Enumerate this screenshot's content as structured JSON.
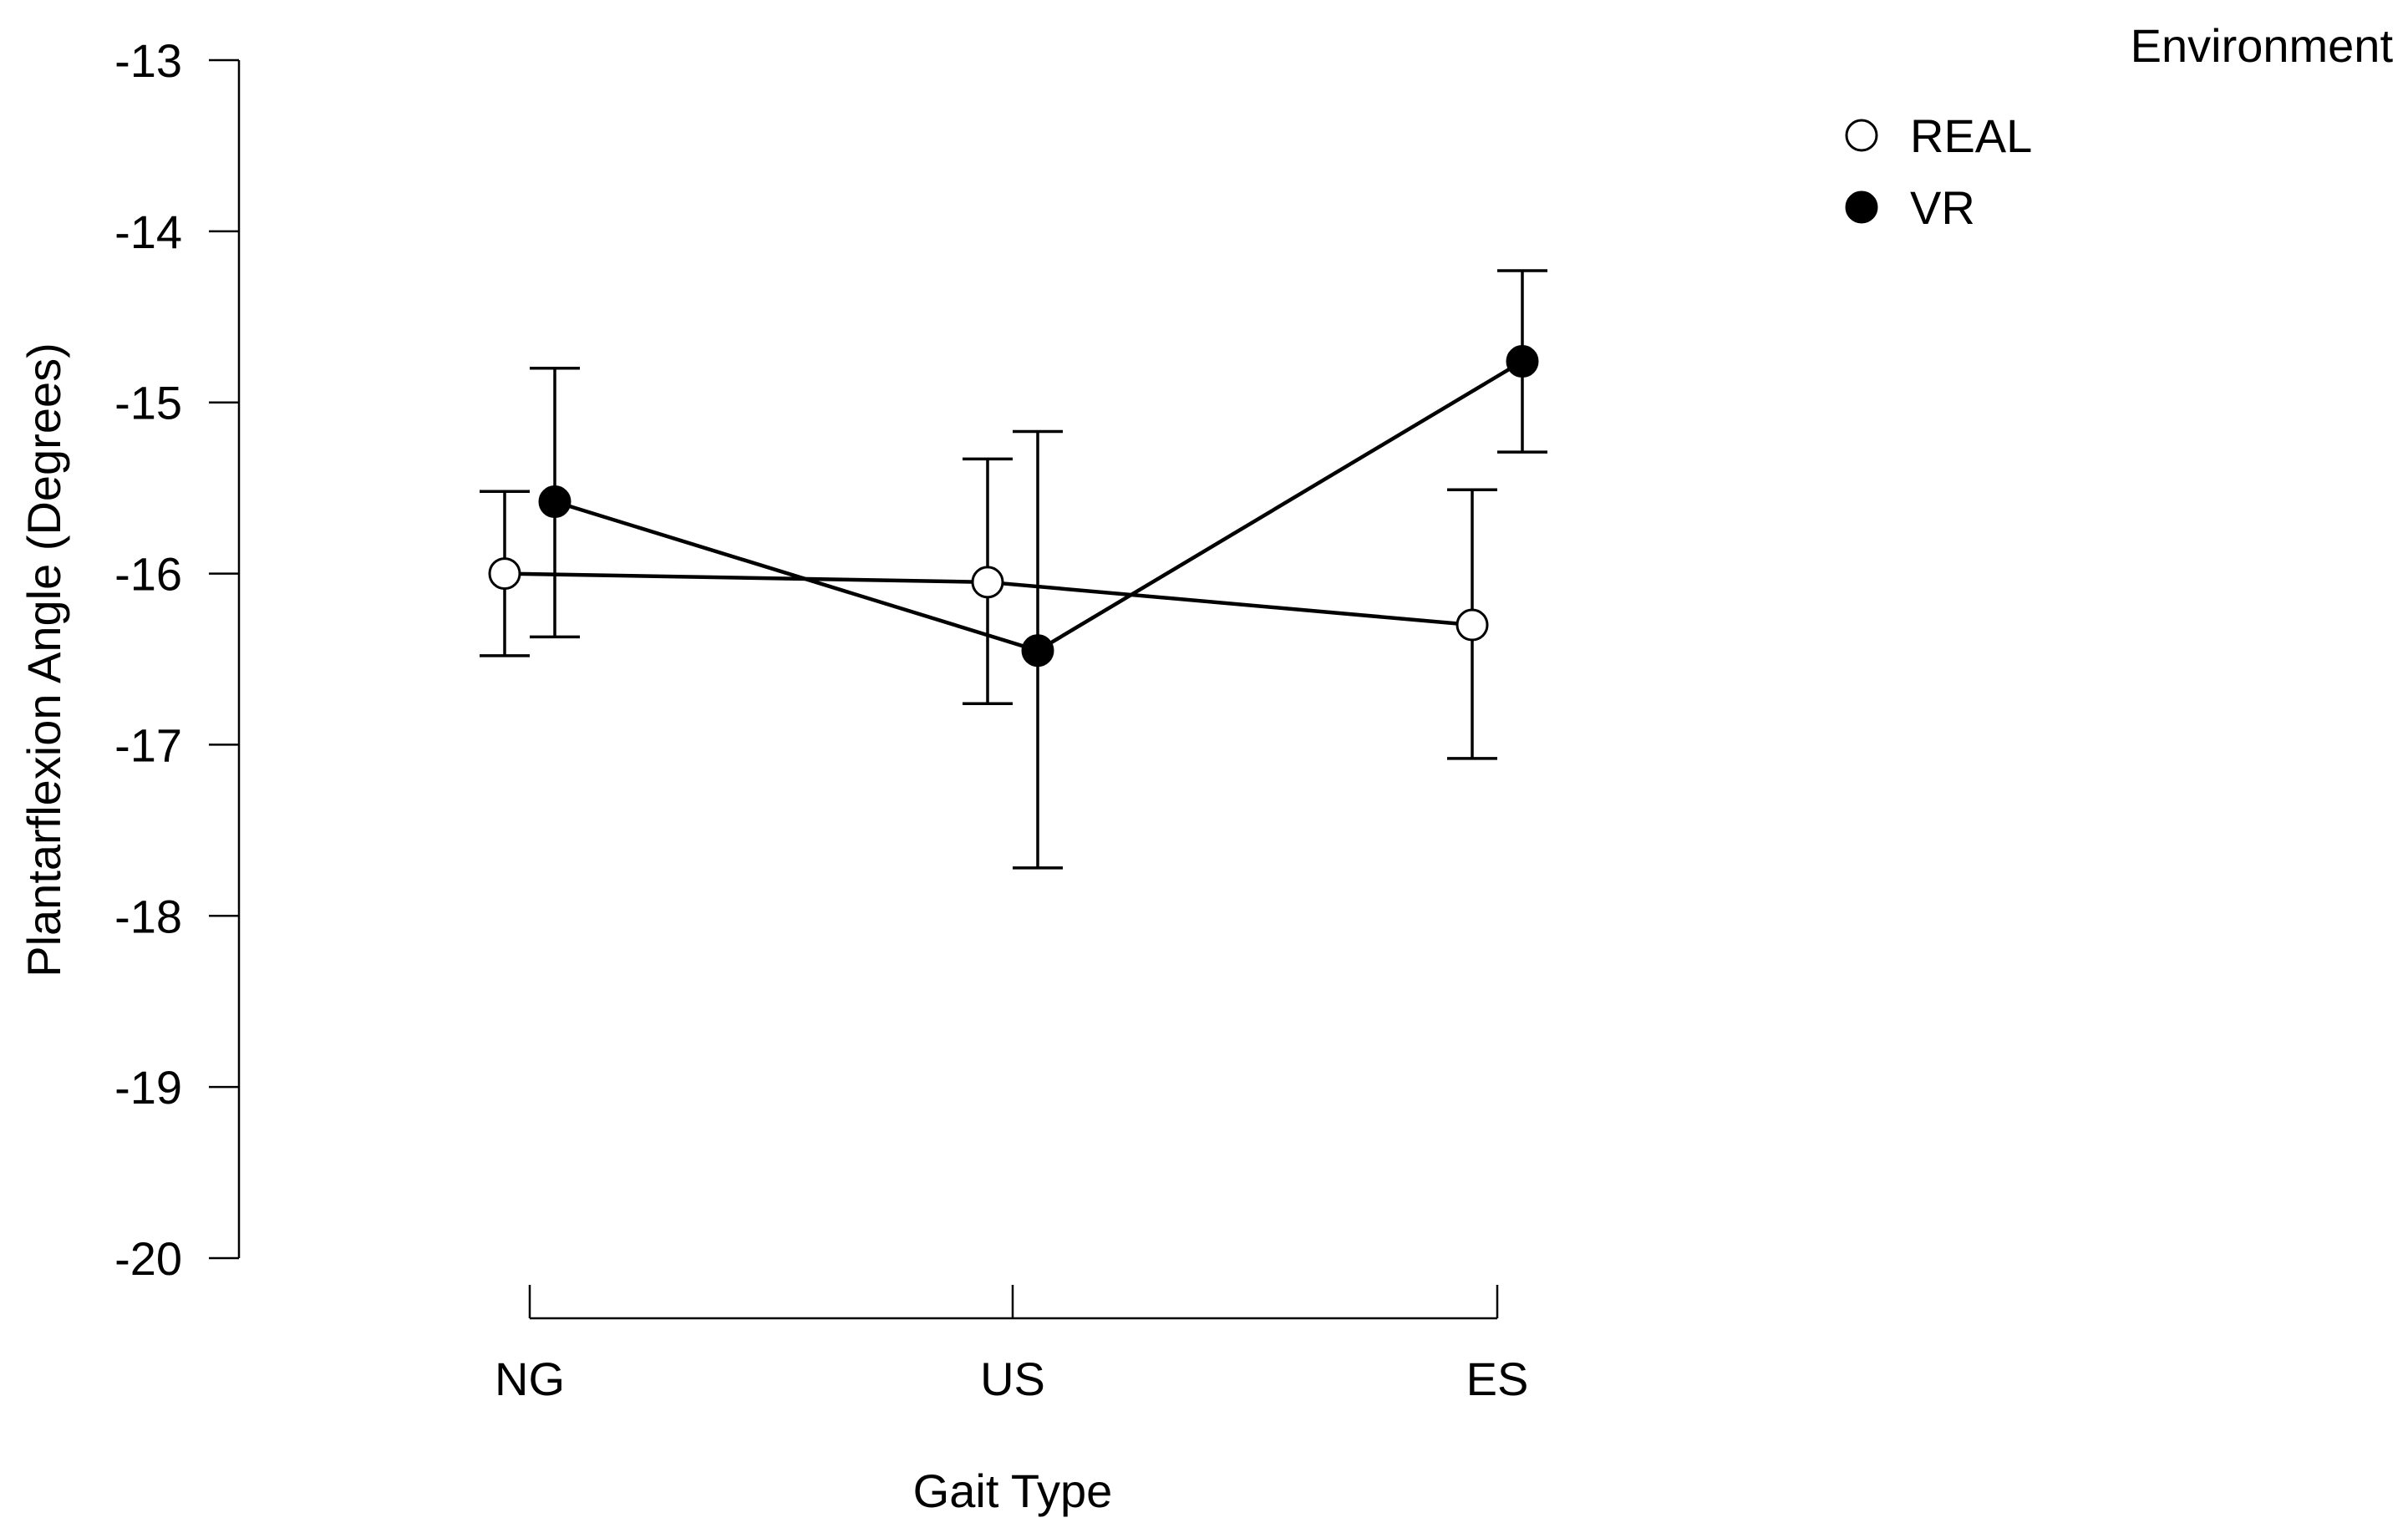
{
  "chart_data": {
    "type": "line",
    "title": "",
    "xlabel": "Gait Type",
    "ylabel": "Plantarflexion Angle (Degrees)",
    "categories": [
      "NG",
      "US",
      "ES"
    ],
    "ylim": [
      -20,
      -13
    ],
    "yticks": [
      -13,
      -14,
      -15,
      -16,
      -17,
      -18,
      -19,
      -20
    ],
    "ytick_labels": [
      "-13",
      "-14",
      "-15",
      "-16",
      "-17",
      "-18",
      "-19",
      "-20"
    ],
    "grid": false,
    "legend": {
      "title": "Environment",
      "placement": "top-right"
    },
    "series": [
      {
        "name": "REAL",
        "marker": "open-circle",
        "color": "#000000",
        "fill": "#ffffff",
        "values": [
          -16.0,
          -16.05,
          -16.3
        ],
        "error_low": [
          -16.48,
          -16.76,
          -17.08
        ],
        "error_high": [
          -15.52,
          -15.33,
          -15.51
        ]
      },
      {
        "name": "VR",
        "marker": "filled-circle",
        "color": "#000000",
        "fill": "#000000",
        "values": [
          -15.58,
          -16.45,
          -14.76
        ],
        "error_low": [
          -16.37,
          -17.72,
          -15.29
        ],
        "error_high": [
          -14.8,
          -15.17,
          -14.23
        ]
      }
    ]
  }
}
